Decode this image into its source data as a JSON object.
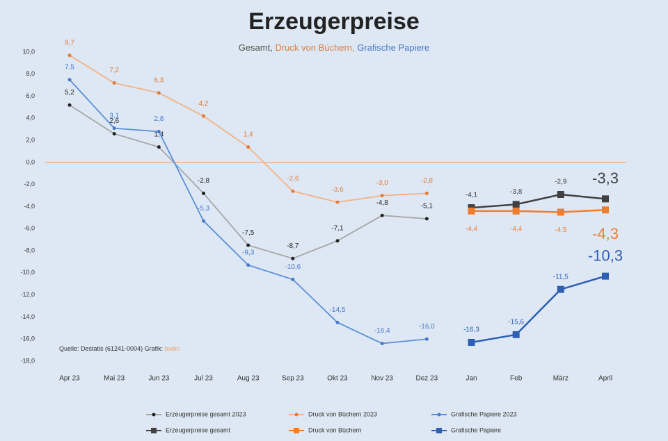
{
  "chart_data": {
    "type": "line",
    "title": "Erzeugerpreise",
    "subtitle": [
      {
        "text": "Gesamt, ",
        "color": "#555555"
      },
      {
        "text": "Druck von Büchern, ",
        "color": "#e07b39"
      },
      {
        "text": "Grafische Papiere",
        "color": "#4a78c8"
      }
    ],
    "source": [
      {
        "text": "Quelle: Destatis (61241-0004) Grafik: ",
        "color": "#333333"
      },
      {
        "text": "bvdm",
        "color": "#f0a060"
      }
    ],
    "categories": [
      "Apr 23",
      "Mai 23",
      "Jun 23",
      "Jul 23",
      "Aug 23",
      "Sep 23",
      "Okt 23",
      "Nov 23",
      "Dez 23",
      "Jan",
      "Feb",
      "März",
      "April"
    ],
    "ylim": [
      -18,
      10
    ],
    "yticks": [
      {
        "value": 10,
        "label": "10,0"
      },
      {
        "value": 8,
        "label": "8,0"
      },
      {
        "value": 6,
        "label": "6,0"
      },
      {
        "value": 4,
        "label": "4,0"
      },
      {
        "value": 2,
        "label": "2,0"
      },
      {
        "value": 0,
        "label": "0,0"
      },
      {
        "value": -2,
        "label": "-2,0"
      },
      {
        "value": -4,
        "label": "-4,0"
      },
      {
        "value": -6,
        "label": "-6,0"
      },
      {
        "value": -8,
        "label": "-8,0"
      },
      {
        "value": -10,
        "label": "-10,0"
      },
      {
        "value": -12,
        "label": "-12,0"
      },
      {
        "value": -14,
        "label": "-14,0"
      },
      {
        "value": -16,
        "label": "-16,0"
      },
      {
        "value": -18,
        "label": "-18,0"
      }
    ],
    "zero_line_color": "#f4b183",
    "series": [
      {
        "name": "Erzeugerpreise gesamt 2023",
        "color": "#a6a6a6",
        "marker": "small",
        "marker_color": "#222222",
        "label_pos": "above",
        "values": [
          5.2,
          2.6,
          1.4,
          -2.8,
          -7.5,
          -8.7,
          -7.1,
          -4.8,
          -5.1,
          null,
          null,
          null,
          null
        ],
        "value_labels": [
          "5,2",
          "2,6",
          "1,4",
          "-2,8",
          "-7,5",
          "-8,7",
          "-7,1",
          "-4,8",
          "-5,1",
          null,
          null,
          null,
          null
        ]
      },
      {
        "name": "Druck von Büchern 2023",
        "color": "#f4b183",
        "marker": "small",
        "marker_color": "#e07b39",
        "label_pos": "above",
        "values": [
          9.7,
          7.2,
          6.3,
          4.2,
          1.4,
          -2.6,
          -3.6,
          -3.0,
          -2.8,
          null,
          null,
          null,
          null
        ],
        "value_labels": [
          "9,7",
          "7,2",
          "6,3",
          "4,2",
          "1,4",
          "-2,6",
          "-3,6",
          "-3,0",
          "-2,8",
          null,
          null,
          null,
          null
        ]
      },
      {
        "name": "Grafische Papiere 2023",
        "color": "#5b8fd9",
        "marker": "small",
        "marker_color": "#4a78c8",
        "label_pos": "above",
        "values": [
          7.5,
          3.1,
          2.8,
          -5.3,
          -9.3,
          -10.6,
          -14.5,
          -16.4,
          -16.0,
          null,
          null,
          null,
          null
        ],
        "value_labels": [
          "7,5",
          "3,1",
          "2,8",
          "-5,3",
          "-9,3",
          "-10,6",
          "-14,5",
          "-16,4",
          "-16,0",
          null,
          null,
          null,
          null
        ]
      },
      {
        "name": "Erzeugerpreise gesamt",
        "color": "#404040",
        "marker": "square",
        "marker_color": "#404040",
        "label_pos": "above",
        "values": [
          null,
          null,
          null,
          null,
          null,
          null,
          null,
          null,
          null,
          -4.1,
          -3.8,
          -2.9,
          -3.3
        ],
        "value_labels": [
          null,
          null,
          null,
          null,
          null,
          null,
          null,
          null,
          null,
          "-4,1",
          "-3,8",
          "-2,9",
          "-3,3"
        ]
      },
      {
        "name": "Druck von Büchern",
        "color": "#ed7d31",
        "marker": "square",
        "marker_color": "#ed7d31",
        "label_pos": "below",
        "values": [
          null,
          null,
          null,
          null,
          null,
          null,
          null,
          null,
          null,
          -4.4,
          -4.4,
          -4.5,
          -4.3
        ],
        "value_labels": [
          null,
          null,
          null,
          null,
          null,
          null,
          null,
          null,
          null,
          "-4,4",
          "-4,4",
          "-4,5",
          "-4,3"
        ]
      },
      {
        "name": "Grafische Papiere",
        "color": "#2f5fb3",
        "marker": "square",
        "marker_color": "#2f5fb3",
        "label_pos": "above",
        "values": [
          null,
          null,
          null,
          null,
          null,
          null,
          null,
          null,
          null,
          -16.3,
          -15.6,
          -11.5,
          -10.3
        ],
        "value_labels": [
          null,
          null,
          null,
          null,
          null,
          null,
          null,
          null,
          null,
          "-16,3",
          "-15,6",
          "-11,5",
          "-10,3"
        ]
      }
    ]
  }
}
